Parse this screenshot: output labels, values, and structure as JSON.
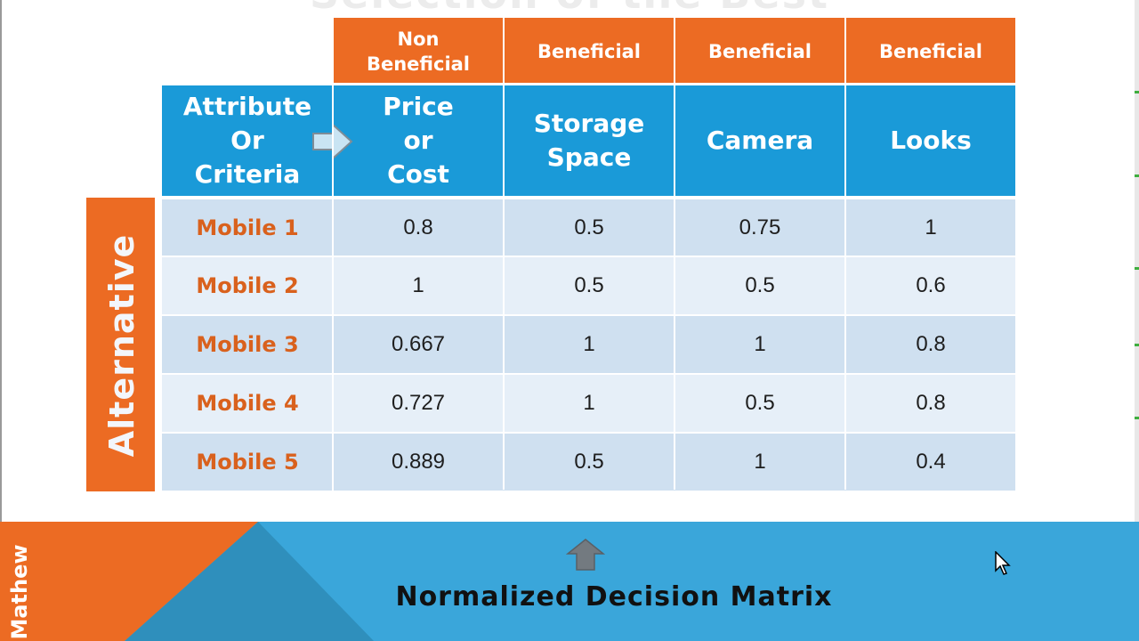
{
  "slide": {
    "title": "Selection of the Best",
    "caption": "Normalized Decision Matrix",
    "presenter": "Mathew",
    "colors": {
      "orange": "#ec6b23",
      "blue": "#1a9ad8",
      "row_dark": "#cfe0f0",
      "row_light": "#e6eff8"
    }
  },
  "matrix": {
    "categories": [
      "Non\nBeneficial",
      "Beneficial",
      "Beneficial",
      "Beneficial"
    ],
    "criteria_header": "Attribute\nOr\nCriteria",
    "arrow_icon": "right-arrow-icon",
    "criteria": [
      "Price\nor\nCost",
      "Storage\nSpace",
      "Camera",
      "Looks"
    ],
    "side_label": "Alternative",
    "rows": [
      {
        "label": "Mobile 1",
        "values": [
          "0.8",
          "0.5",
          "0.75",
          "1"
        ]
      },
      {
        "label": "Mobile 2",
        "values": [
          "1",
          "0.5",
          "0.5",
          "0.6"
        ]
      },
      {
        "label": "Mobile 3",
        "values": [
          "0.667",
          "1",
          "1",
          "0.8"
        ]
      },
      {
        "label": "Mobile 4",
        "values": [
          "0.727",
          "1",
          "0.5",
          "0.8"
        ]
      },
      {
        "label": "Mobile 5",
        "values": [
          "0.889",
          "0.5",
          "1",
          "0.4"
        ]
      }
    ]
  }
}
